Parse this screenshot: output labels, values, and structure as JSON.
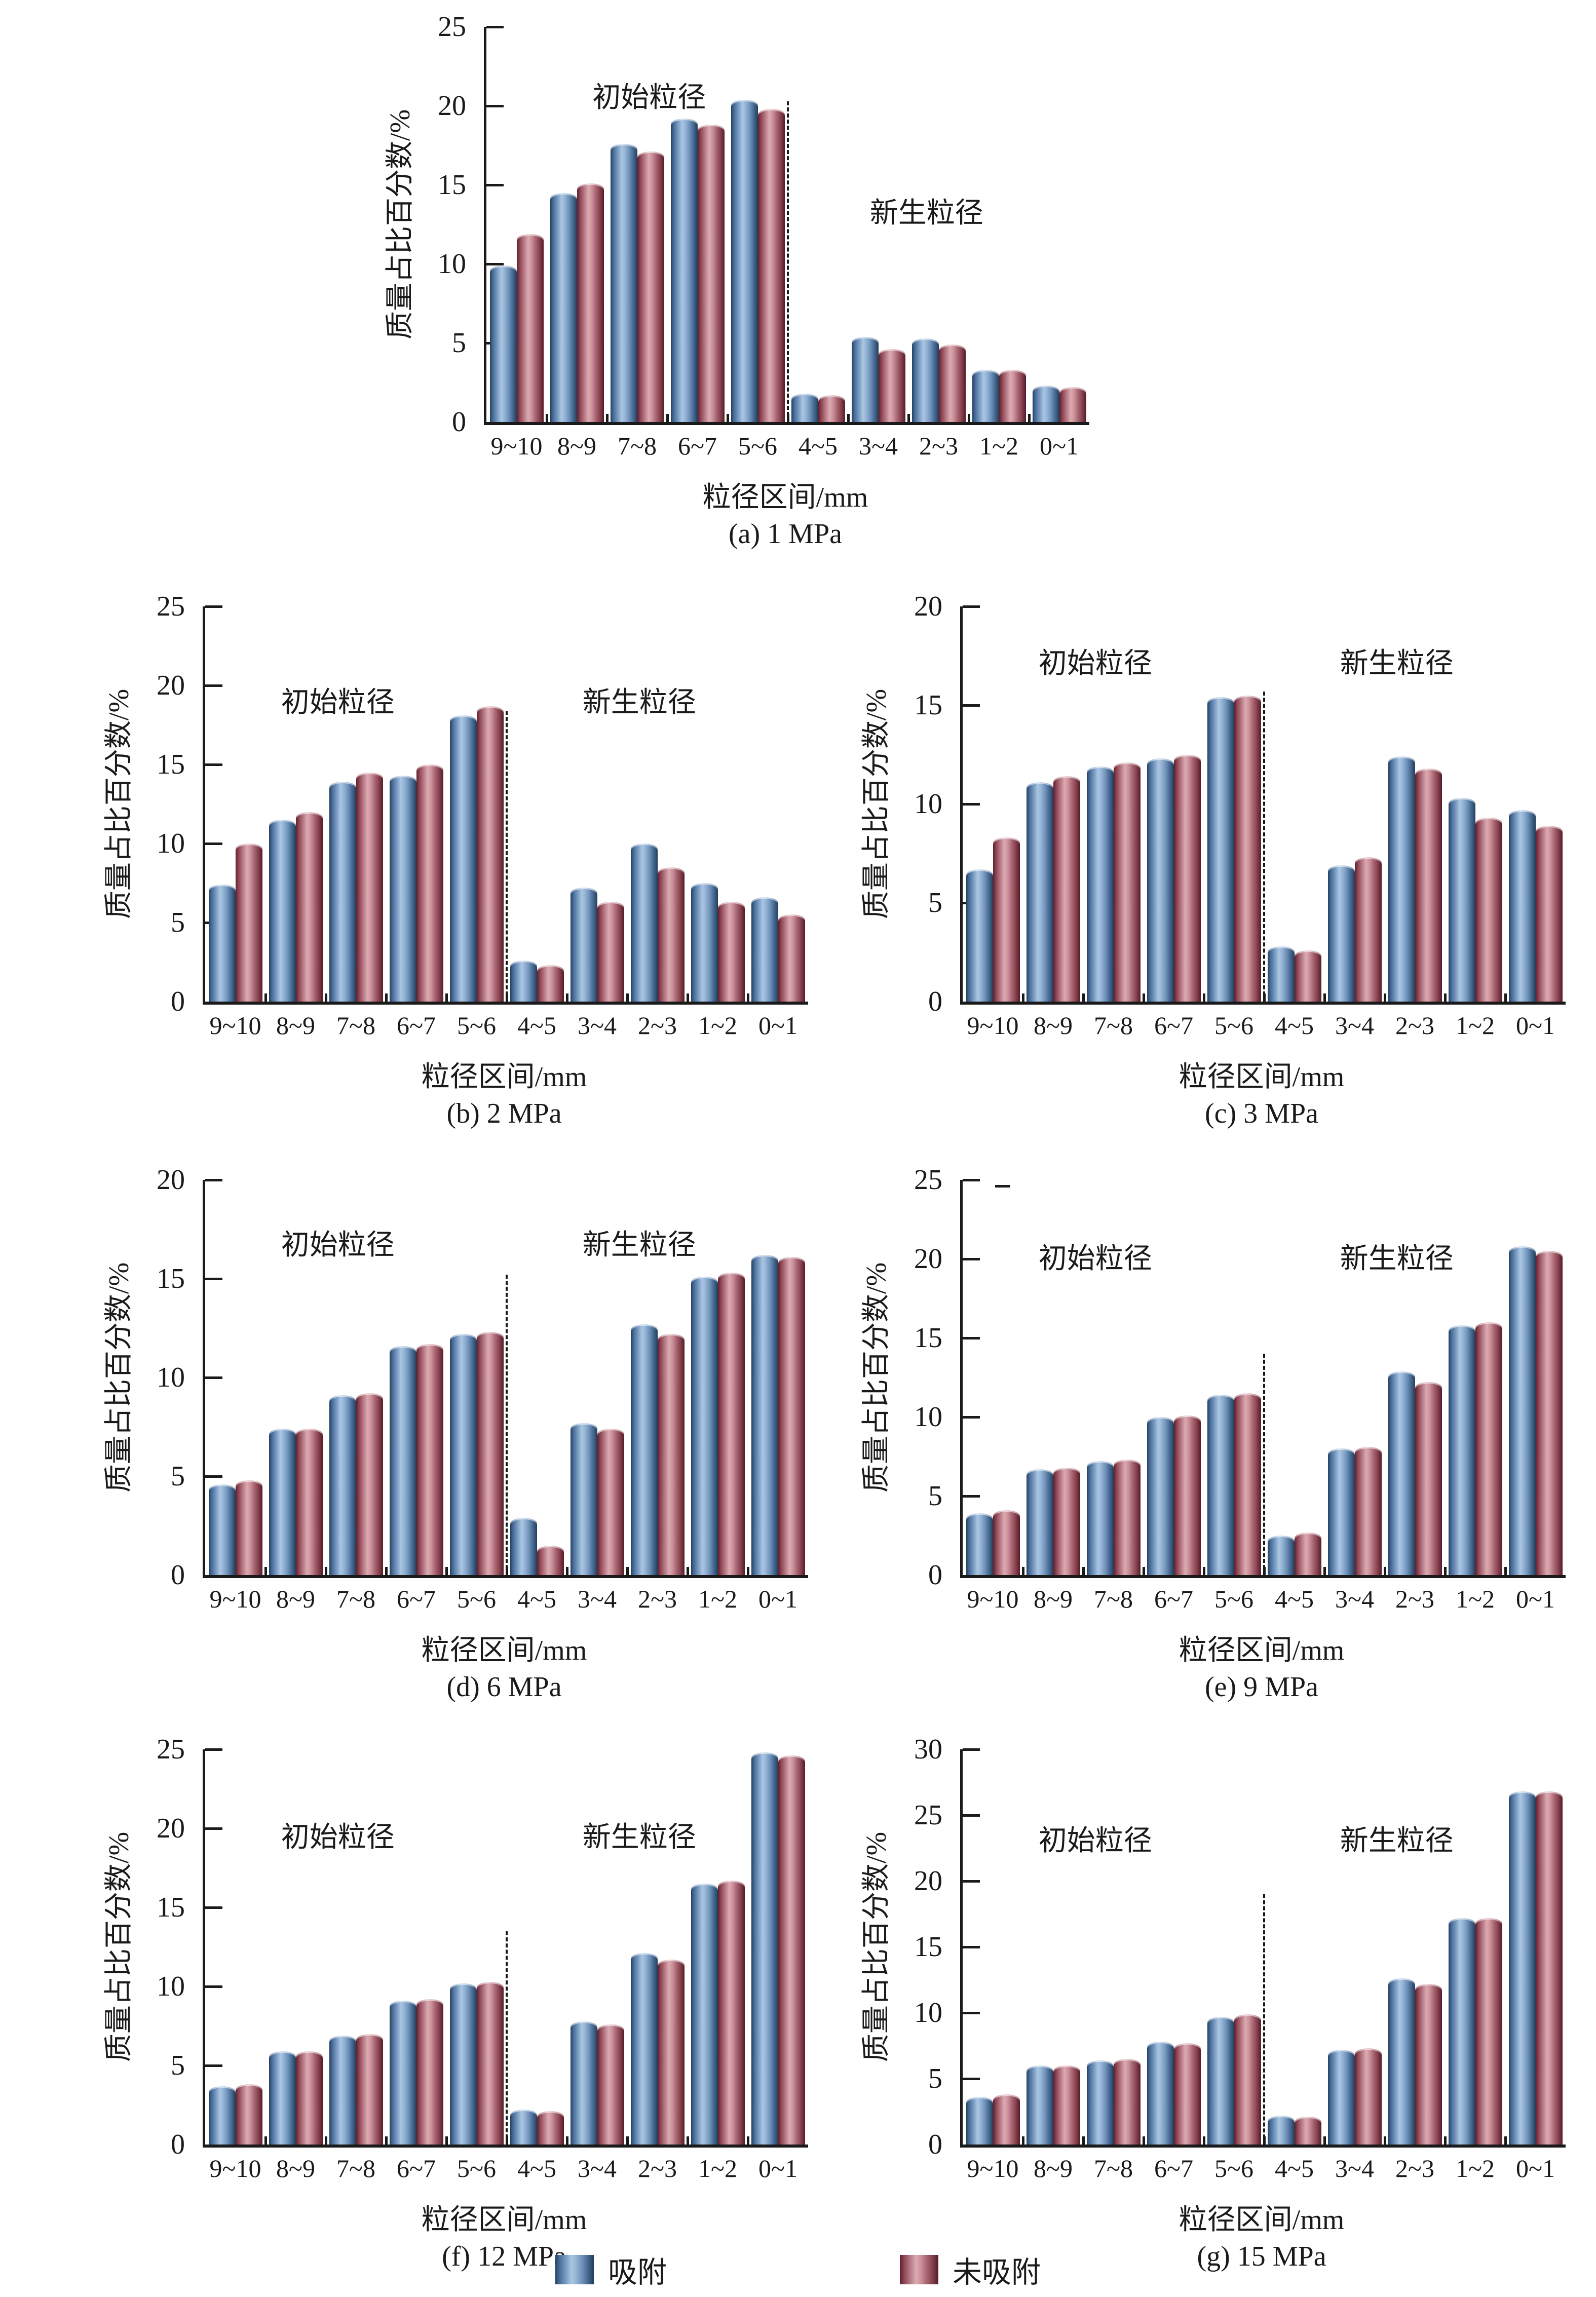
{
  "figure": {
    "ylabel": "质量占比百分数/%",
    "xlabel": "粒径区间/mm",
    "categories": [
      "9~10",
      "8~9",
      "7~8",
      "6~7",
      "5~6",
      "4~5",
      "3~4",
      "2~3",
      "1~2",
      "0~1"
    ],
    "series_names": [
      "吸附",
      "未吸附"
    ],
    "annotations": {
      "left": "初始粒径",
      "right": "新生粒径"
    },
    "colors": {
      "adsorbed_light": "#aac6e2",
      "adsorbed_dark": "#24405f",
      "unadsorbed_light": "#dcaab2",
      "unadsorbed_dark": "#5e1f2c",
      "axis": "#1a1a1a"
    },
    "legend": [
      {
        "name": "吸附",
        "series": "adsorbed"
      },
      {
        "name": "未吸附",
        "series": "unadsorbed"
      }
    ]
  },
  "chart_data": [
    {
      "type": "bar",
      "caption": "(a) 1 MPa",
      "pressure": "1 MPa",
      "xlabel": "粒径区间/mm",
      "ylabel": "质量占比百分数/%",
      "ylim": [
        0,
        25
      ],
      "ystep": 5,
      "yticks": [
        0,
        5,
        10,
        15,
        20,
        25
      ],
      "categories": [
        "9~10",
        "8~9",
        "7~8",
        "6~7",
        "5~6",
        "4~5",
        "3~4",
        "2~3",
        "1~2",
        "0~1"
      ],
      "series": [
        {
          "name": "吸附",
          "values": [
            9.9,
            14.5,
            17.6,
            19.2,
            20.4,
            1.8,
            5.4,
            5.3,
            3.3,
            2.3
          ]
        },
        {
          "name": "未吸附",
          "values": [
            11.9,
            15.1,
            17.1,
            18.8,
            19.8,
            1.7,
            4.6,
            4.9,
            3.3,
            2.2
          ]
        }
      ],
      "divider": {
        "between": "5~6 | 4~5",
        "top": 20.3
      },
      "annotations": {
        "left": "初始粒径",
        "right": "新生粒径",
        "left_y": 20.9,
        "right_y": 13.6,
        "left_x_pct": 27,
        "right_x_pct": 73
      }
    },
    {
      "type": "bar",
      "caption": "(b) 2 MPa",
      "pressure": "2 MPa",
      "xlabel": "粒径区间/mm",
      "ylabel": "质量占比百分数/%",
      "ylim": [
        0,
        25
      ],
      "ystep": 5,
      "yticks": [
        0,
        5,
        10,
        15,
        20,
        25
      ],
      "categories": [
        "9~10",
        "8~9",
        "7~8",
        "6~7",
        "5~6",
        "4~5",
        "3~4",
        "2~3",
        "1~2",
        "0~1"
      ],
      "series": [
        {
          "name": "吸附",
          "values": [
            7.4,
            11.5,
            13.9,
            14.3,
            18.1,
            2.6,
            7.2,
            10.0,
            7.5,
            6.6
          ]
        },
        {
          "name": "未吸附",
          "values": [
            10.0,
            12.0,
            14.5,
            15.0,
            18.7,
            2.3,
            6.3,
            8.5,
            6.3,
            5.5
          ]
        }
      ],
      "divider": {
        "between": "5~6 | 4~5",
        "top": 18.4
      },
      "annotations": {
        "left": "初始粒径",
        "right": "新生粒径",
        "left_y": 19.3,
        "right_y": 19.3,
        "left_x_pct": 22,
        "right_x_pct": 72
      }
    },
    {
      "type": "bar",
      "caption": "(c) 3 MPa",
      "pressure": "3 MPa",
      "xlabel": "粒径区间/mm",
      "ylabel": "质量占比百分数/%",
      "ylim": [
        0,
        20
      ],
      "ystep": 5,
      "yticks": [
        0,
        5,
        10,
        15,
        20
      ],
      "categories": [
        "9~10",
        "8~9",
        "7~8",
        "6~7",
        "5~6",
        "4~5",
        "3~4",
        "2~3",
        "1~2",
        "0~1"
      ],
      "series": [
        {
          "name": "吸附",
          "values": [
            6.7,
            11.1,
            11.9,
            12.3,
            15.4,
            2.8,
            6.9,
            12.4,
            10.3,
            9.7
          ]
        },
        {
          "name": "未吸附",
          "values": [
            8.3,
            11.4,
            12.1,
            12.5,
            15.5,
            2.6,
            7.3,
            11.8,
            9.3,
            8.9
          ]
        }
      ],
      "divider": {
        "between": "5~6 | 4~5",
        "top": 15.7
      },
      "annotations": {
        "left": "初始粒径",
        "right": "新生粒径",
        "left_y": 17.4,
        "right_y": 17.4,
        "left_x_pct": 22,
        "right_x_pct": 72
      }
    },
    {
      "type": "bar",
      "caption": "(d) 6 MPa",
      "pressure": "6 MPa",
      "xlabel": "粒径区间/mm",
      "ylabel": "质量占比百分数/%",
      "ylim": [
        0,
        20
      ],
      "ystep": 5,
      "yticks": [
        0,
        5,
        10,
        15,
        20
      ],
      "categories": [
        "9~10",
        "8~9",
        "7~8",
        "6~7",
        "5~6",
        "4~5",
        "3~4",
        "2~3",
        "1~2",
        "0~1"
      ],
      "series": [
        {
          "name": "吸附",
          "values": [
            4.6,
            7.4,
            9.1,
            11.6,
            12.2,
            2.9,
            7.7,
            12.7,
            15.1,
            16.2
          ]
        },
        {
          "name": "未吸附",
          "values": [
            4.8,
            7.4,
            9.2,
            11.7,
            12.3,
            1.5,
            7.4,
            12.2,
            15.3,
            16.1
          ]
        }
      ],
      "divider": {
        "between": "5~6 | 4~5",
        "top": 15.2
      },
      "annotations": {
        "left": "初始粒径",
        "right": "新生粒径",
        "left_y": 17.0,
        "right_y": 17.0,
        "left_x_pct": 22,
        "right_x_pct": 72
      }
    },
    {
      "type": "bar",
      "caption": "(e) 9 MPa",
      "pressure": "9 MPa",
      "xlabel": "粒径区间/mm",
      "ylabel": "质量占比百分数/%",
      "ylim": [
        0,
        25
      ],
      "ystep": 5,
      "yticks": [
        0,
        5,
        10,
        15,
        20,
        25
      ],
      "categories": [
        "9~10",
        "8~9",
        "7~8",
        "6~7",
        "5~6",
        "4~5",
        "3~4",
        "2~3",
        "1~2",
        "0~1"
      ],
      "series": [
        {
          "name": "吸附",
          "values": [
            3.9,
            6.7,
            7.2,
            10.0,
            11.4,
            2.5,
            8.0,
            12.9,
            15.8,
            20.8
          ]
        },
        {
          "name": "未吸附",
          "values": [
            4.1,
            6.8,
            7.3,
            10.1,
            11.5,
            2.7,
            8.1,
            12.2,
            16.0,
            20.5
          ]
        }
      ],
      "divider": {
        "between": "5~6 | 4~5",
        "top": 14.0
      },
      "stray_mark": true,
      "annotations": {
        "left": "初始粒径",
        "right": "新生粒径",
        "left_y": 20.4,
        "right_y": 20.4,
        "left_x_pct": 22,
        "right_x_pct": 72
      }
    },
    {
      "type": "bar",
      "caption": "(f) 12 MPa",
      "pressure": "12 MPa",
      "xlabel": "粒径区间/mm",
      "ylabel": "质量占比百分数/%",
      "ylim": [
        0,
        25
      ],
      "ystep": 5,
      "yticks": [
        0,
        5,
        10,
        15,
        20,
        25
      ],
      "categories": [
        "9~10",
        "8~9",
        "7~8",
        "6~7",
        "5~6",
        "4~5",
        "3~4",
        "2~3",
        "1~2",
        "0~1"
      ],
      "series": [
        {
          "name": "吸附",
          "values": [
            3.7,
            5.9,
            6.9,
            9.1,
            10.2,
            2.2,
            7.8,
            12.1,
            16.5,
            24.8
          ]
        },
        {
          "name": "未吸附",
          "values": [
            3.8,
            5.9,
            7.0,
            9.2,
            10.3,
            2.1,
            7.6,
            11.7,
            16.7,
            24.6
          ]
        }
      ],
      "divider": {
        "between": "5~6 | 4~5",
        "top": 13.5
      },
      "annotations": {
        "left": "初始粒径",
        "right": "新生粒径",
        "left_y": 19.8,
        "right_y": 19.8,
        "left_x_pct": 22,
        "right_x_pct": 72
      }
    },
    {
      "type": "bar",
      "caption": "(g) 15 MPa",
      "pressure": "15 MPa",
      "xlabel": "粒径区间/mm",
      "ylabel": "质量占比百分数/%",
      "ylim": [
        0,
        30
      ],
      "ystep": 5,
      "yticks": [
        0,
        5,
        10,
        15,
        20,
        25,
        30
      ],
      "categories": [
        "9~10",
        "8~9",
        "7~8",
        "6~7",
        "5~6",
        "4~5",
        "3~4",
        "2~3",
        "1~2",
        "0~1"
      ],
      "series": [
        {
          "name": "吸附",
          "values": [
            3.6,
            6.0,
            6.4,
            7.8,
            9.7,
            2.2,
            7.2,
            12.6,
            17.2,
            26.8
          ]
        },
        {
          "name": "未吸附",
          "values": [
            3.8,
            6.0,
            6.5,
            7.7,
            9.9,
            2.1,
            7.3,
            12.2,
            17.2,
            26.8
          ]
        }
      ],
      "divider": {
        "between": "5~6 | 4~5",
        "top": 19.0
      },
      "annotations": {
        "left": "初始粒径",
        "right": "新生粒径",
        "left_y": 23.5,
        "right_y": 23.5,
        "left_x_pct": 22,
        "right_x_pct": 72
      }
    }
  ]
}
